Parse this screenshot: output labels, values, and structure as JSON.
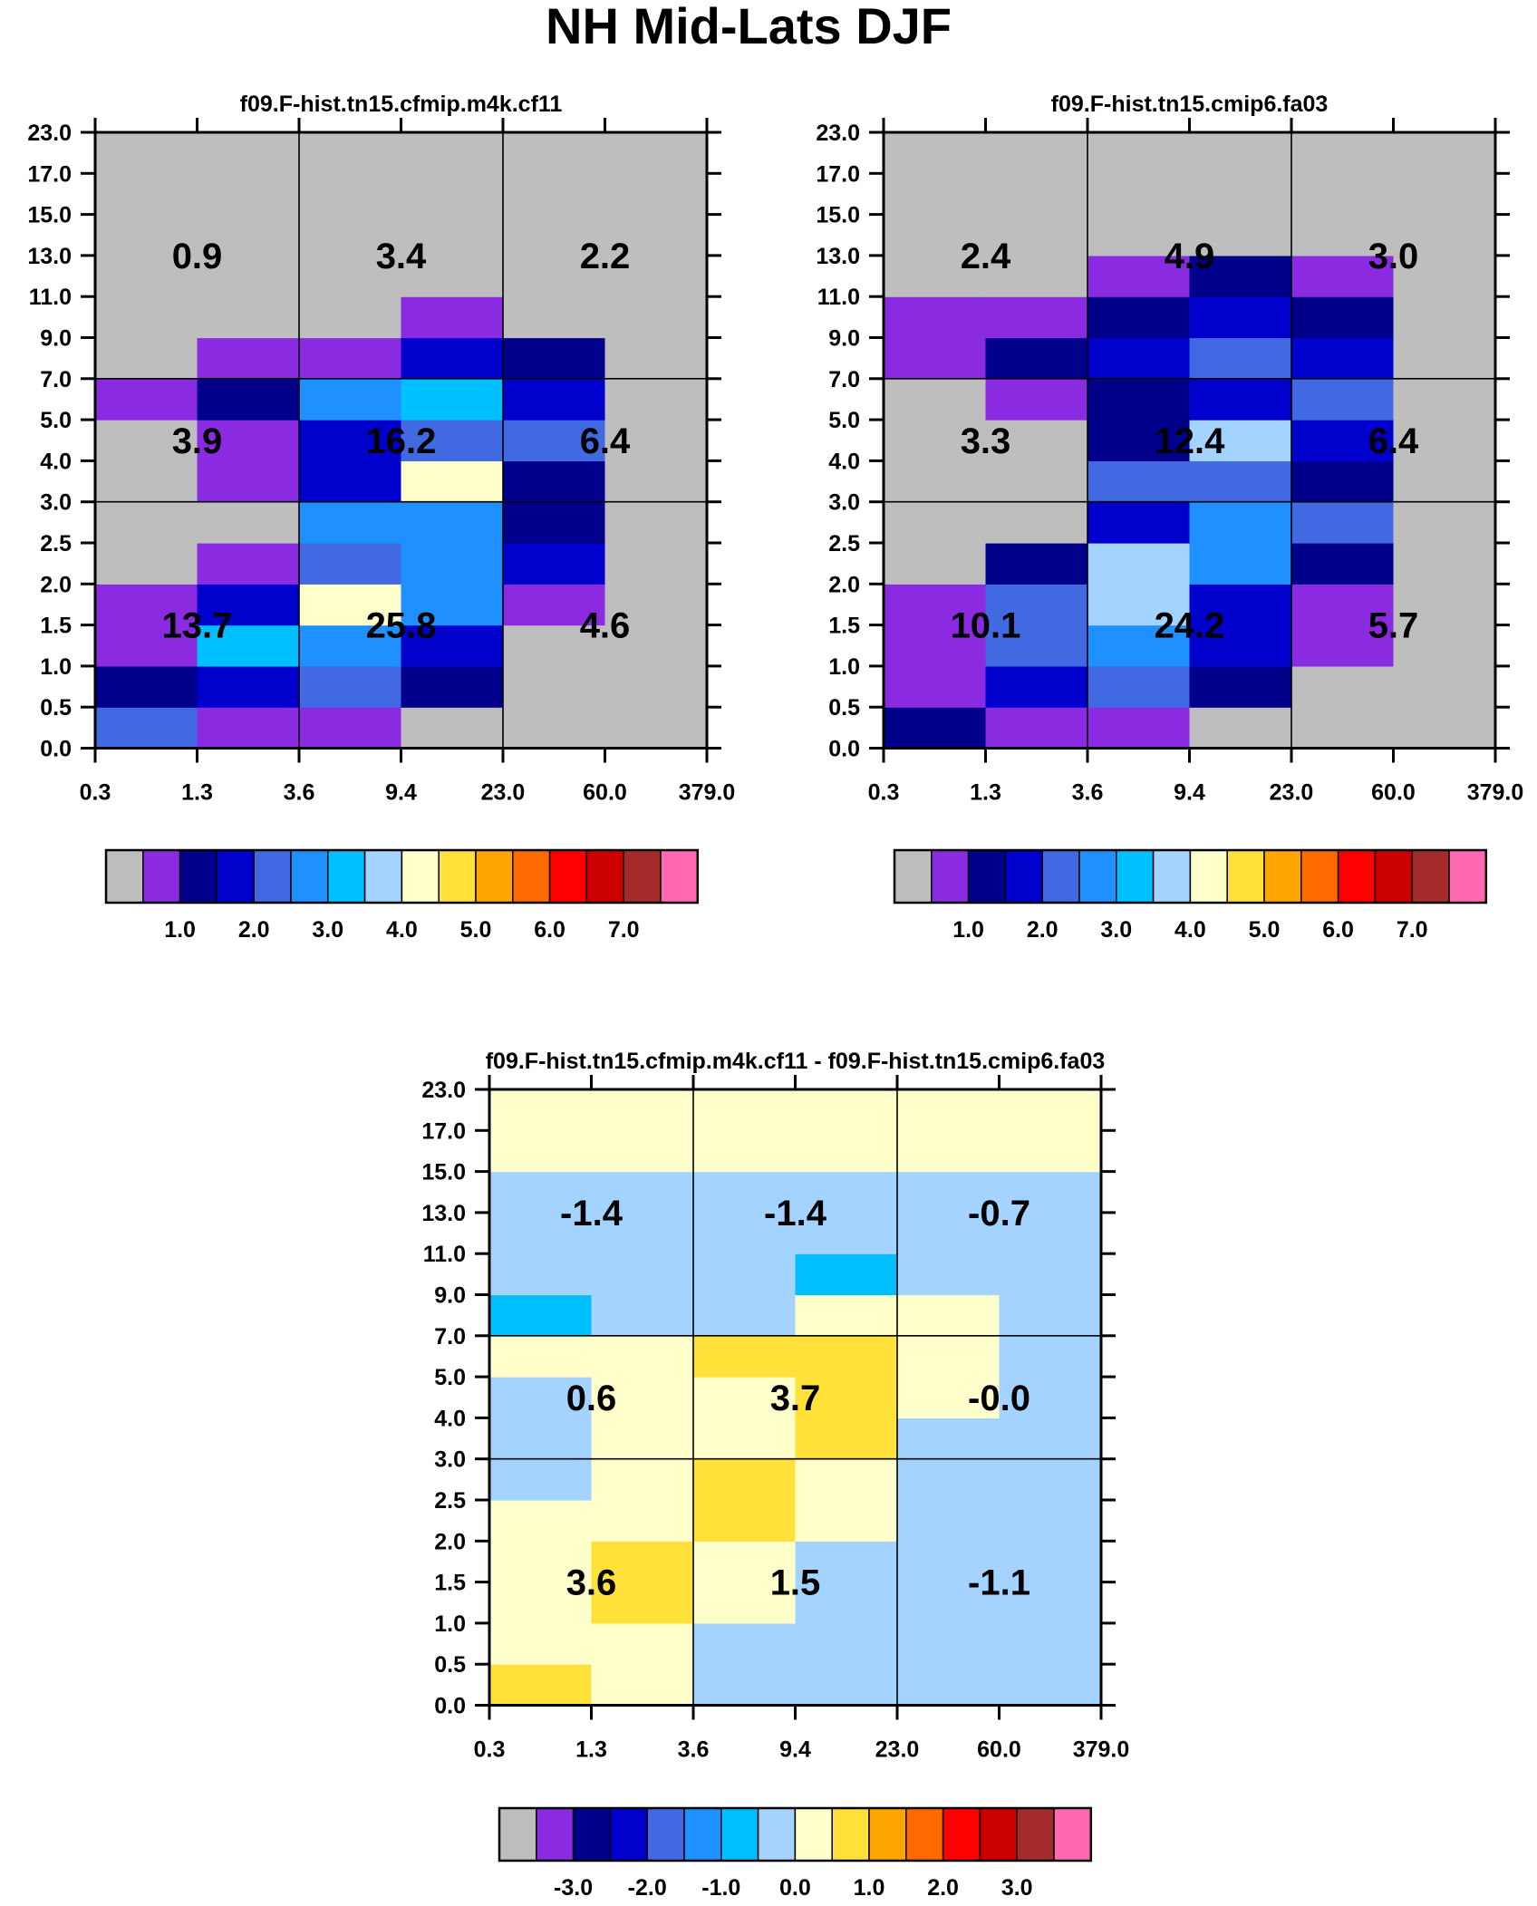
{
  "title": "NH Mid-Lats DJF",
  "colors": {
    "abs_palette": [
      "#bebebe",
      "#8a2be2",
      "#00008b",
      "#0000cd",
      "#4169e1",
      "#1e90ff",
      "#00bfff",
      "#a4d3ff",
      "#ffffcc",
      "#ffe13a",
      "#ffa500",
      "#ff6a00",
      "#ff0000",
      "#cd0000",
      "#a52a2a",
      "#ff69b4"
    ],
    "diff_palette": [
      "#bebebe",
      "#8a2be2",
      "#00008b",
      "#0000cd",
      "#4169e1",
      "#1e90ff",
      "#00bfff",
      "#a4d3ff",
      "#ffffcc",
      "#ffe13a",
      "#ffa500",
      "#ff6a00",
      "#ff0000",
      "#cd0000",
      "#a52a2a",
      "#ff69b4"
    ]
  },
  "chart_data": [
    {
      "type": "heatmap",
      "id": "panel1",
      "title": "f09.F-hist.tn15.cfmip.m4k.cf11",
      "x_ticklabels": [
        "0.3",
        "1.3",
        "3.6",
        "9.4",
        "23.0",
        "60.0",
        "379.0"
      ],
      "y_ticklabels": [
        "0.0",
        "0.5",
        "1.0",
        "1.5",
        "2.0",
        "2.5",
        "3.0",
        "4.0",
        "5.0",
        "7.0",
        "9.0",
        "11.0",
        "13.0",
        "15.0",
        "17.0",
        "23.0"
      ],
      "color_index_grid_bottom_to_top": [
        [
          4,
          1,
          1,
          0,
          0,
          0
        ],
        [
          2,
          3,
          4,
          2,
          0,
          0
        ],
        [
          1,
          6,
          5,
          3,
          0,
          0
        ],
        [
          1,
          3,
          8,
          5,
          1,
          0
        ],
        [
          0,
          1,
          4,
          5,
          3,
          0
        ],
        [
          0,
          0,
          5,
          5,
          2,
          0
        ],
        [
          0,
          1,
          3,
          8,
          2,
          0
        ],
        [
          0,
          1,
          3,
          4,
          4,
          0
        ],
        [
          1,
          2,
          5,
          6,
          3,
          0
        ],
        [
          0,
          1,
          1,
          3,
          2,
          0
        ],
        [
          0,
          0,
          0,
          1,
          0,
          0
        ],
        [
          0,
          0,
          0,
          0,
          0,
          0
        ],
        [
          0,
          0,
          0,
          0,
          0,
          0
        ],
        [
          0,
          0,
          0,
          0,
          0,
          0
        ],
        [
          0,
          0,
          0,
          0,
          0,
          0
        ]
      ],
      "group_labels_top_to_bottom": [
        [
          "0.9",
          "3.4",
          "2.2"
        ],
        [
          "3.9",
          "16.2",
          "6.4"
        ],
        [
          "13.7",
          "25.8",
          "4.6"
        ]
      ],
      "colorbar_labels": [
        "1.0",
        "2.0",
        "3.0",
        "4.0",
        "5.0",
        "6.0",
        "7.0"
      ]
    },
    {
      "type": "heatmap",
      "id": "panel2",
      "title": "f09.F-hist.tn15.cmip6.fa03",
      "x_ticklabels": [
        "0.3",
        "1.3",
        "3.6",
        "9.4",
        "23.0",
        "60.0",
        "379.0"
      ],
      "y_ticklabels": [
        "0.0",
        "0.5",
        "1.0",
        "1.5",
        "2.0",
        "2.5",
        "3.0",
        "4.0",
        "5.0",
        "7.0",
        "9.0",
        "11.0",
        "13.0",
        "15.0",
        "17.0",
        "23.0"
      ],
      "color_index_grid_bottom_to_top": [
        [
          2,
          1,
          1,
          0,
          0,
          0
        ],
        [
          1,
          3,
          4,
          2,
          0,
          0
        ],
        [
          1,
          4,
          5,
          3,
          1,
          0
        ],
        [
          1,
          4,
          7,
          3,
          1,
          0
        ],
        [
          0,
          2,
          7,
          5,
          2,
          0
        ],
        [
          0,
          0,
          3,
          5,
          4,
          0
        ],
        [
          0,
          0,
          4,
          4,
          2,
          0
        ],
        [
          0,
          0,
          2,
          7,
          3,
          0
        ],
        [
          0,
          1,
          2,
          3,
          4,
          0
        ],
        [
          1,
          2,
          3,
          4,
          3,
          0
        ],
        [
          1,
          1,
          2,
          3,
          2,
          0
        ],
        [
          0,
          0,
          1,
          2,
          1,
          0
        ],
        [
          0,
          0,
          0,
          0,
          0,
          0
        ],
        [
          0,
          0,
          0,
          0,
          0,
          0
        ],
        [
          0,
          0,
          0,
          0,
          0,
          0
        ]
      ],
      "group_labels_top_to_bottom": [
        [
          "2.4",
          "4.9",
          "3.0"
        ],
        [
          "3.3",
          "12.4",
          "6.4"
        ],
        [
          "10.1",
          "24.2",
          "5.7"
        ]
      ],
      "colorbar_labels": [
        "1.0",
        "2.0",
        "3.0",
        "4.0",
        "5.0",
        "6.0",
        "7.0"
      ]
    },
    {
      "type": "heatmap",
      "id": "panel3",
      "title": "f09.F-hist.tn15.cfmip.m4k.cf11 - f09.F-hist.tn15.cmip6.fa03",
      "x_ticklabels": [
        "0.3",
        "1.3",
        "3.6",
        "9.4",
        "23.0",
        "60.0",
        "379.0"
      ],
      "y_ticklabels": [
        "0.0",
        "0.5",
        "1.0",
        "1.5",
        "2.0",
        "2.5",
        "3.0",
        "4.0",
        "5.0",
        "7.0",
        "9.0",
        "11.0",
        "13.0",
        "15.0",
        "17.0",
        "23.0"
      ],
      "color_index_grid_bottom_to_top": [
        [
          9,
          8,
          7,
          7,
          7,
          7
        ],
        [
          8,
          8,
          7,
          7,
          7,
          7
        ],
        [
          8,
          9,
          8,
          7,
          7,
          7
        ],
        [
          8,
          9,
          8,
          7,
          7,
          7
        ],
        [
          8,
          8,
          9,
          8,
          7,
          7
        ],
        [
          7,
          8,
          9,
          8,
          7,
          7
        ],
        [
          7,
          8,
          8,
          9,
          7,
          7
        ],
        [
          7,
          8,
          8,
          9,
          8,
          7
        ],
        [
          8,
          8,
          9,
          9,
          8,
          7
        ],
        [
          6,
          7,
          7,
          8,
          8,
          7
        ],
        [
          7,
          7,
          7,
          6,
          7,
          7
        ],
        [
          7,
          7,
          7,
          7,
          7,
          7
        ],
        [
          7,
          7,
          7,
          7,
          7,
          7
        ],
        [
          8,
          8,
          8,
          8,
          8,
          8
        ],
        [
          8,
          8,
          8,
          8,
          8,
          8
        ]
      ],
      "group_labels_top_to_bottom": [
        [
          "-1.4",
          "-1.4",
          "-0.7"
        ],
        [
          "0.6",
          "3.7",
          "-0.0"
        ],
        [
          "3.6",
          "1.5",
          "-1.1"
        ]
      ],
      "colorbar_labels": [
        "-3.0",
        "-2.0",
        "-1.0",
        "0.0",
        "1.0",
        "2.0",
        "3.0"
      ]
    }
  ]
}
